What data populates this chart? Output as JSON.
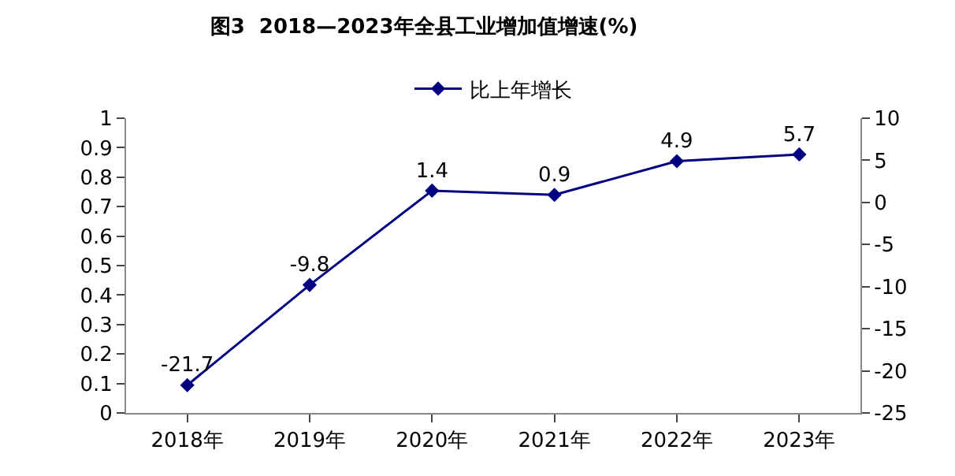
{
  "chart_data": {
    "type": "line",
    "title": "图3  2018—2023年全县工业增加值增速(%)",
    "categories": [
      "2018年",
      "2019年",
      "2020年",
      "2021年",
      "2022年",
      "2023年"
    ],
    "series": [
      {
        "name": "比上年增长",
        "color": "#000080",
        "values": [
          -21.7,
          -9.8,
          1.4,
          0.9,
          4.9,
          5.7
        ],
        "axis": "y2"
      }
    ],
    "ylim": [
      0,
      1
    ],
    "yticks": [
      0,
      0.1,
      0.2,
      0.3,
      0.4,
      0.5,
      0.6,
      0.7,
      0.8,
      0.9,
      1
    ],
    "y2lim": [
      -25,
      10
    ],
    "y2ticks": [
      -25,
      -20,
      -15,
      -10,
      -5,
      0,
      5,
      10
    ],
    "data_labels": true,
    "legend": "top",
    "marker": "diamond",
    "line_style": "solid"
  }
}
